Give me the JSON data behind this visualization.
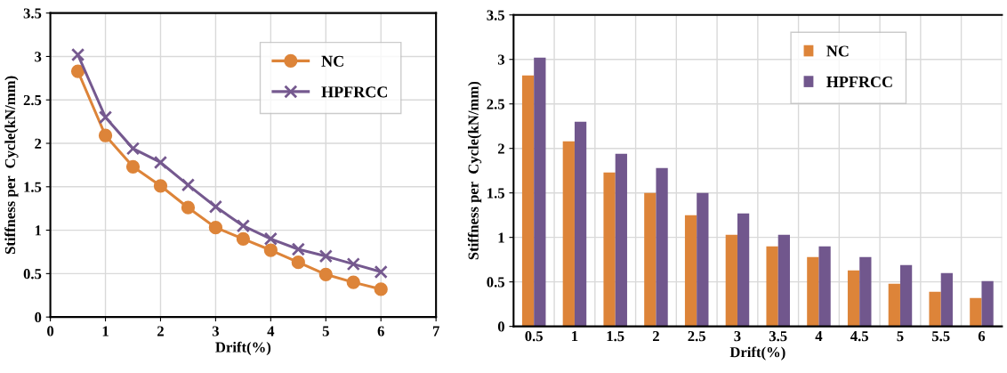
{
  "chart_data": [
    {
      "type": "line",
      "xlabel": "Drift(%)",
      "ylabel": "Stiffness per  Cycle(kN/mm)",
      "x": [
        0.5,
        1,
        1.5,
        2,
        2.5,
        3,
        3.5,
        4,
        4.5,
        5,
        5.5,
        6
      ],
      "series": [
        {
          "name": "NC",
          "color": "#dd8439",
          "marker": "circle",
          "values": [
            2.83,
            2.09,
            1.73,
            1.51,
            1.26,
            1.03,
            0.9,
            0.77,
            0.63,
            0.49,
            0.4,
            0.32
          ]
        },
        {
          "name": "HPFRCC",
          "color": "#75598f",
          "marker": "cross",
          "values": [
            3.02,
            2.3,
            1.94,
            1.78,
            1.52,
            1.27,
            1.05,
            0.9,
            0.78,
            0.7,
            0.61,
            0.52
          ]
        }
      ],
      "xlim": [
        0,
        7
      ],
      "xticks": [
        0,
        1,
        2,
        3,
        4,
        5,
        6,
        7
      ],
      "ylim": [
        0,
        3.5
      ],
      "yticks": [
        0,
        0.5,
        1,
        1.5,
        2,
        2.5,
        3,
        3.5
      ],
      "grid": true,
      "legend": "top right"
    },
    {
      "type": "bar",
      "xlabel": "Drift(%)",
      "ylabel": "Stiffness per  Cycle(kN/mm)",
      "categories": [
        "0.5",
        "1",
        "1.5",
        "2",
        "2.5",
        "3",
        "3.5",
        "4",
        "4.5",
        "5",
        "5.5",
        "6"
      ],
      "series": [
        {
          "name": "NC",
          "color": "#dd8439",
          "values": [
            2.82,
            2.08,
            1.73,
            1.5,
            1.25,
            1.03,
            0.9,
            0.78,
            0.63,
            0.48,
            0.39,
            0.32
          ]
        },
        {
          "name": "HPFRCC",
          "color": "#71578d",
          "values": [
            3.02,
            2.3,
            1.94,
            1.78,
            1.5,
            1.27,
            1.03,
            0.9,
            0.78,
            0.69,
            0.6,
            0.51
          ]
        }
      ],
      "ylim": [
        0,
        3.5
      ],
      "yticks": [
        0,
        0.5,
        1,
        1.5,
        2,
        2.5,
        3,
        3.5
      ],
      "grid": true,
      "legend": "top right"
    }
  ]
}
